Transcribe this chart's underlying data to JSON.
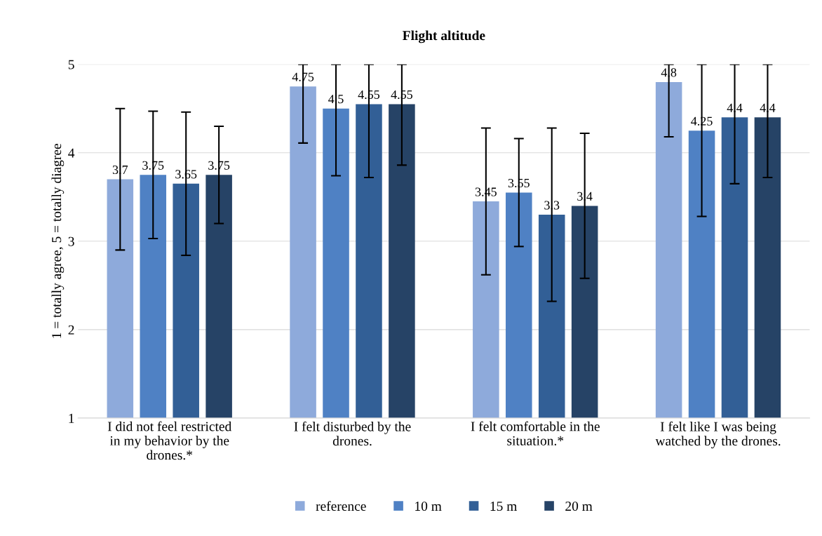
{
  "chart_data": {
    "type": "bar",
    "title": "Flight altitude",
    "ylabel": "1 = totally agree, 5 = totally diagree",
    "categories": [
      "I did not feel restricted in my behavior by the drones.*",
      "I felt disturbed by the drones.",
      "I felt comfortable in the situation.*",
      "I felt like I was being watched by the drones."
    ],
    "series": [
      {
        "name": "reference",
        "color": "#8eaadb",
        "values": [
          3.7,
          4.75,
          3.45,
          4.8
        ],
        "errors": [
          [
            2.9,
            4.5
          ],
          [
            4.11,
            5
          ],
          [
            2.62,
            4.28
          ],
          [
            4.18,
            5
          ]
        ]
      },
      {
        "name": "10 m",
        "color": "#4f81c4",
        "values": [
          3.75,
          4.5,
          3.55,
          4.25
        ],
        "errors": [
          [
            3.03,
            4.47
          ],
          [
            3.74,
            5
          ],
          [
            2.94,
            4.16
          ],
          [
            3.28,
            5
          ]
        ]
      },
      {
        "name": "15 m",
        "color": "#325f96",
        "values": [
          3.65,
          4.55,
          3.3,
          4.4
        ],
        "errors": [
          [
            2.84,
            4.46
          ],
          [
            3.72,
            5
          ],
          [
            2.32,
            4.28
          ],
          [
            3.65,
            5
          ]
        ]
      },
      {
        "name": "20 m",
        "color": "#264366",
        "values": [
          3.75,
          4.55,
          3.4,
          4.4
        ],
        "errors": [
          [
            3.2,
            4.3
          ],
          [
            3.86,
            5
          ],
          [
            2.58,
            4.22
          ],
          [
            3.72,
            5
          ]
        ]
      }
    ],
    "ylim": [
      1,
      5
    ],
    "yticks": [
      1,
      2,
      3,
      4,
      5
    ],
    "grid": "y",
    "legend": "bottom",
    "data_labels": true
  }
}
